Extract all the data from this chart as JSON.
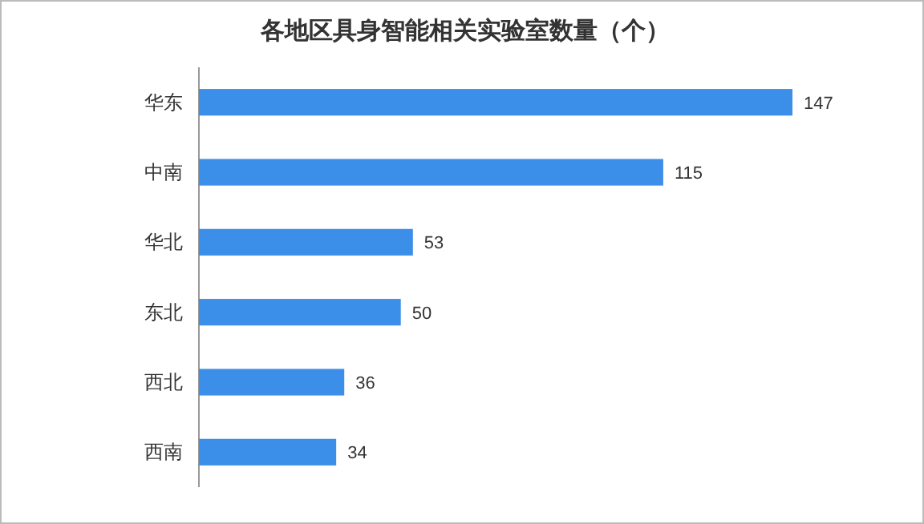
{
  "chart_data": {
    "type": "bar",
    "orientation": "horizontal",
    "title": "各地区具身智能相关实验室数量（个）",
    "categories": [
      "华东",
      "中南",
      "华北",
      "东北",
      "西北",
      "西南"
    ],
    "values": [
      147,
      115,
      53,
      50,
      36,
      34
    ],
    "color": "#3c8fe8",
    "data_labels": true,
    "tick_labels": "y"
  }
}
